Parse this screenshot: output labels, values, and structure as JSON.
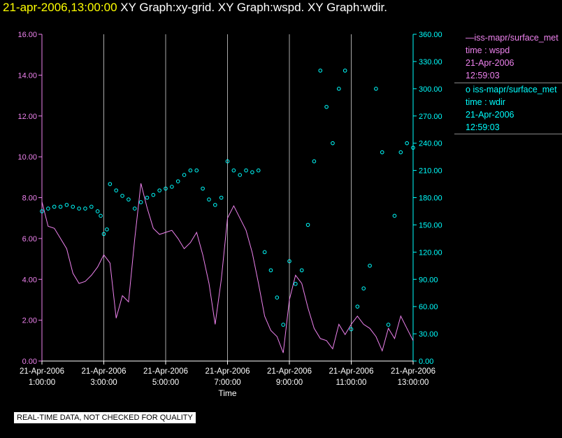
{
  "title": {
    "timestamp": "21-apr-2006,13:00:00",
    "graphs": " XY Graph:xy-grid.  XY Graph:wspd.  XY Graph:wdir."
  },
  "legend": {
    "series1": {
      "name": "iss-mapr/surface_met",
      "field": "time : wspd",
      "date": "21-Apr-2006",
      "time": "12:59:03"
    },
    "series2": {
      "name": "iss-mapr/surface_met",
      "field": "time : wdir",
      "date": "21-Apr-2006",
      "time": "12:59:03"
    }
  },
  "disclaimer": "REAL-TIME DATA, NOT CHECKED FOR QUALITY",
  "colors": {
    "wspd": "#ee82ee",
    "wdir": "#00ffff",
    "title_timestamp": "#ffff00",
    "grid": "#aaaaaa"
  },
  "chart_data": {
    "type": "line+scatter",
    "xlabel": "Time",
    "x_unit": "hours",
    "xlim": [
      1.0,
      13.0
    ],
    "x_ticks": [
      {
        "date": "21-Apr-2006",
        "time": "1:00:00",
        "hour": 1
      },
      {
        "date": "21-Apr-2006",
        "time": "3:00:00",
        "hour": 3
      },
      {
        "date": "21-Apr-2006",
        "time": "5:00:00",
        "hour": 5
      },
      {
        "date": "21-Apr-2006",
        "time": "7:00:00",
        "hour": 7
      },
      {
        "date": "21-Apr-2006",
        "time": "9:00:00",
        "hour": 9
      },
      {
        "date": "21-Apr-2006",
        "time": "11:00:00",
        "hour": 11
      },
      {
        "date": "21-Apr-2006",
        "time": "13:00:00",
        "hour": 13
      }
    ],
    "y_left": {
      "ylim": [
        0,
        16
      ],
      "ticks": [
        "0.00",
        "2.00",
        "4.00",
        "6.00",
        "8.00",
        "10.00",
        "12.00",
        "14.00",
        "16.00"
      ]
    },
    "y_right": {
      "ylim": [
        0,
        360
      ],
      "ticks": [
        "0.00",
        "30.00",
        "60.00",
        "90.00",
        "120.00",
        "150.00",
        "180.00",
        "210.00",
        "240.00",
        "270.00",
        "300.00",
        "330.00",
        "360.00"
      ]
    },
    "grid": "vertical lines at major x ticks",
    "series": [
      {
        "axis": "left",
        "style": "line",
        "x": [
          1.0,
          1.2,
          1.4,
          1.6,
          1.8,
          2.0,
          2.2,
          2.4,
          2.6,
          2.8,
          3.0,
          3.2,
          3.4,
          3.6,
          3.8,
          4.0,
          4.2,
          4.4,
          4.6,
          4.8,
          5.0,
          5.2,
          5.4,
          5.6,
          5.8,
          6.0,
          6.2,
          6.4,
          6.6,
          6.8,
          7.0,
          7.2,
          7.4,
          7.6,
          7.8,
          8.0,
          8.2,
          8.4,
          8.6,
          8.8,
          9.0,
          9.2,
          9.4,
          9.6,
          9.8,
          10.0,
          10.2,
          10.4,
          10.6,
          10.8,
          11.0,
          11.2,
          11.4,
          11.6,
          11.8,
          12.0,
          12.2,
          12.4,
          12.6,
          12.8,
          13.0
        ],
        "values": [
          7.8,
          6.6,
          6.5,
          6.0,
          5.5,
          4.3,
          3.8,
          3.9,
          4.2,
          4.6,
          5.2,
          4.8,
          2.1,
          3.2,
          2.9,
          6.0,
          8.7,
          7.5,
          6.5,
          6.2,
          6.3,
          6.4,
          6.0,
          5.5,
          5.8,
          6.3,
          5.2,
          3.8,
          1.8,
          4.0,
          7.0,
          7.6,
          7.0,
          6.4,
          5.3,
          3.8,
          2.2,
          1.5,
          1.2,
          0.4,
          3.0,
          4.2,
          3.8,
          2.6,
          1.6,
          1.1,
          1.0,
          0.6,
          1.8,
          1.3,
          1.8,
          2.2,
          1.8,
          1.6,
          1.2,
          0.5,
          1.6,
          1.1,
          2.2,
          1.6,
          1.0
        ]
      },
      {
        "axis": "right",
        "style": "scatter",
        "x": [
          1.0,
          1.2,
          1.4,
          1.6,
          1.8,
          2.0,
          2.2,
          2.4,
          2.6,
          2.8,
          2.9,
          3.0,
          3.1,
          3.2,
          3.4,
          3.6,
          3.8,
          4.0,
          4.2,
          4.4,
          4.6,
          4.8,
          5.0,
          5.2,
          5.4,
          5.6,
          5.8,
          6.0,
          6.2,
          6.4,
          6.6,
          6.8,
          7.0,
          7.2,
          7.4,
          7.6,
          7.8,
          8.0,
          8.2,
          8.4,
          8.6,
          8.8,
          9.0,
          9.2,
          9.4,
          9.6,
          9.8,
          10.0,
          10.2,
          10.4,
          10.6,
          10.8,
          11.0,
          11.2,
          11.4,
          11.6,
          11.8,
          12.0,
          12.2,
          12.4,
          12.6,
          12.8,
          13.0
        ],
        "values": [
          165,
          168,
          170,
          170,
          172,
          170,
          168,
          168,
          170,
          165,
          160,
          140,
          145,
          195,
          188,
          182,
          178,
          168,
          175,
          180,
          183,
          188,
          190,
          192,
          198,
          205,
          210,
          210,
          190,
          178,
          172,
          180,
          220,
          210,
          205,
          210,
          208,
          210,
          120,
          100,
          70,
          40,
          110,
          85,
          100,
          150,
          220,
          320,
          280,
          240,
          300,
          320,
          35,
          60,
          80,
          105,
          300,
          230,
          40,
          160,
          230,
          240,
          235
        ]
      }
    ]
  }
}
